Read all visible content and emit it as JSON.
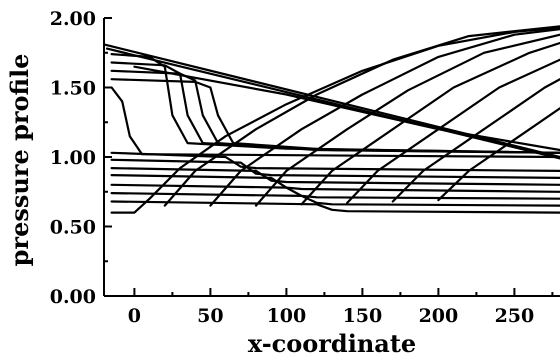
{
  "chart_data": {
    "type": "line",
    "title": "",
    "xlabel": "x-coordinate",
    "ylabel": "pressure profile",
    "xlim": [
      -20,
      280
    ],
    "ylim": [
      0.0,
      2.0
    ],
    "x_ticks": [
      "0",
      "50",
      "100",
      "150",
      "200",
      "250"
    ],
    "x_tick_values": [
      0,
      50,
      100,
      150,
      200,
      250
    ],
    "y_ticks": [
      "0.00",
      "0.50",
      "1.00",
      "1.50",
      "2.00"
    ],
    "y_tick_values": [
      0.0,
      0.5,
      1.0,
      1.5,
      2.0
    ],
    "grid": false,
    "series": [
      {
        "values": [
          [
            -20,
            1.81
          ],
          [
            280,
            1.0
          ]
        ]
      },
      {
        "values": [
          [
            -18,
            1.78
          ],
          [
            280,
            0.99
          ]
        ]
      },
      {
        "values": [
          [
            -15,
            1.74
          ],
          [
            10,
            1.72
          ],
          [
            20,
            1.65
          ],
          [
            25,
            1.3
          ],
          [
            35,
            1.1
          ],
          [
            100,
            1.06
          ],
          [
            280,
            1.03
          ]
        ]
      },
      {
        "values": [
          [
            -15,
            1.68
          ],
          [
            20,
            1.66
          ],
          [
            30,
            1.6
          ],
          [
            35,
            1.3
          ],
          [
            45,
            1.1
          ],
          [
            110,
            1.06
          ],
          [
            280,
            1.03
          ]
        ]
      },
      {
        "values": [
          [
            -15,
            1.62
          ],
          [
            30,
            1.6
          ],
          [
            40,
            1.55
          ],
          [
            45,
            1.3
          ],
          [
            55,
            1.1
          ],
          [
            120,
            1.05
          ],
          [
            280,
            1.03
          ]
        ]
      },
      {
        "values": [
          [
            -15,
            1.56
          ],
          [
            40,
            1.54
          ],
          [
            50,
            1.5
          ],
          [
            55,
            1.3
          ],
          [
            65,
            1.1
          ],
          [
            130,
            1.05
          ],
          [
            280,
            1.03
          ]
        ]
      },
      {
        "values": [
          [
            -15,
            1.5
          ],
          [
            -8,
            1.4
          ],
          [
            -3,
            1.15
          ],
          [
            5,
            1.02
          ],
          [
            280,
            1.0
          ]
        ]
      },
      {
        "values": [
          [
            -15,
            1.03
          ],
          [
            60,
            1.0
          ],
          [
            70,
            0.93
          ],
          [
            80,
            0.92
          ],
          [
            280,
            0.9
          ]
        ]
      },
      {
        "values": [
          [
            -15,
            0.98
          ],
          [
            70,
            0.96
          ],
          [
            80,
            0.88
          ],
          [
            90,
            0.87
          ],
          [
            280,
            0.85
          ]
        ]
      },
      {
        "values": [
          [
            -15,
            0.92
          ],
          [
            80,
            0.9
          ],
          [
            90,
            0.83
          ],
          [
            100,
            0.82
          ],
          [
            280,
            0.8
          ]
        ]
      },
      {
        "values": [
          [
            -15,
            0.87
          ],
          [
            90,
            0.85
          ],
          [
            100,
            0.78
          ],
          [
            110,
            0.77
          ],
          [
            280,
            0.75
          ]
        ]
      },
      {
        "values": [
          [
            -15,
            0.8
          ],
          [
            100,
            0.78
          ],
          [
            110,
            0.72
          ],
          [
            120,
            0.71
          ],
          [
            280,
            0.7
          ]
        ]
      },
      {
        "values": [
          [
            -15,
            0.74
          ],
          [
            110,
            0.72
          ],
          [
            120,
            0.67
          ],
          [
            130,
            0.66
          ],
          [
            280,
            0.65
          ]
        ]
      },
      {
        "values": [
          [
            -15,
            0.68
          ],
          [
            120,
            0.66
          ],
          [
            130,
            0.62
          ],
          [
            140,
            0.61
          ],
          [
            280,
            0.6
          ]
        ]
      },
      {
        "values": [
          [
            -15,
            0.6
          ],
          [
            0,
            0.6
          ],
          [
            10,
            0.7
          ],
          [
            30,
            0.92
          ],
          [
            60,
            1.15
          ],
          [
            100,
            1.38
          ],
          [
            150,
            1.62
          ],
          [
            200,
            1.8
          ],
          [
            250,
            1.9
          ],
          [
            280,
            1.93
          ]
        ]
      },
      {
        "values": [
          [
            20,
            0.65
          ],
          [
            40,
            0.9
          ],
          [
            80,
            1.2
          ],
          [
            120,
            1.45
          ],
          [
            170,
            1.7
          ],
          [
            220,
            1.87
          ],
          [
            280,
            1.94
          ]
        ]
      },
      {
        "values": [
          [
            50,
            0.65
          ],
          [
            70,
            0.9
          ],
          [
            110,
            1.2
          ],
          [
            150,
            1.45
          ],
          [
            200,
            1.72
          ],
          [
            250,
            1.88
          ],
          [
            280,
            1.92
          ]
        ]
      },
      {
        "values": [
          [
            80,
            0.65
          ],
          [
            100,
            0.9
          ],
          [
            140,
            1.2
          ],
          [
            180,
            1.48
          ],
          [
            230,
            1.75
          ],
          [
            280,
            1.88
          ]
        ]
      },
      {
        "values": [
          [
            110,
            0.66
          ],
          [
            130,
            0.9
          ],
          [
            170,
            1.2
          ],
          [
            210,
            1.5
          ],
          [
            260,
            1.75
          ],
          [
            280,
            1.82
          ]
        ]
      },
      {
        "values": [
          [
            140,
            0.67
          ],
          [
            160,
            0.9
          ],
          [
            200,
            1.2
          ],
          [
            240,
            1.5
          ],
          [
            280,
            1.7
          ]
        ]
      },
      {
        "values": [
          [
            170,
            0.68
          ],
          [
            190,
            0.9
          ],
          [
            230,
            1.2
          ],
          [
            270,
            1.5
          ],
          [
            280,
            1.56
          ]
        ]
      },
      {
        "values": [
          [
            200,
            0.69
          ],
          [
            220,
            0.9
          ],
          [
            260,
            1.2
          ],
          [
            280,
            1.35
          ]
        ]
      },
      {
        "values": [
          [
            0,
            1.65
          ],
          [
            100,
            1.45
          ],
          [
            200,
            1.2
          ],
          [
            280,
            1.05
          ]
        ]
      }
    ]
  }
}
